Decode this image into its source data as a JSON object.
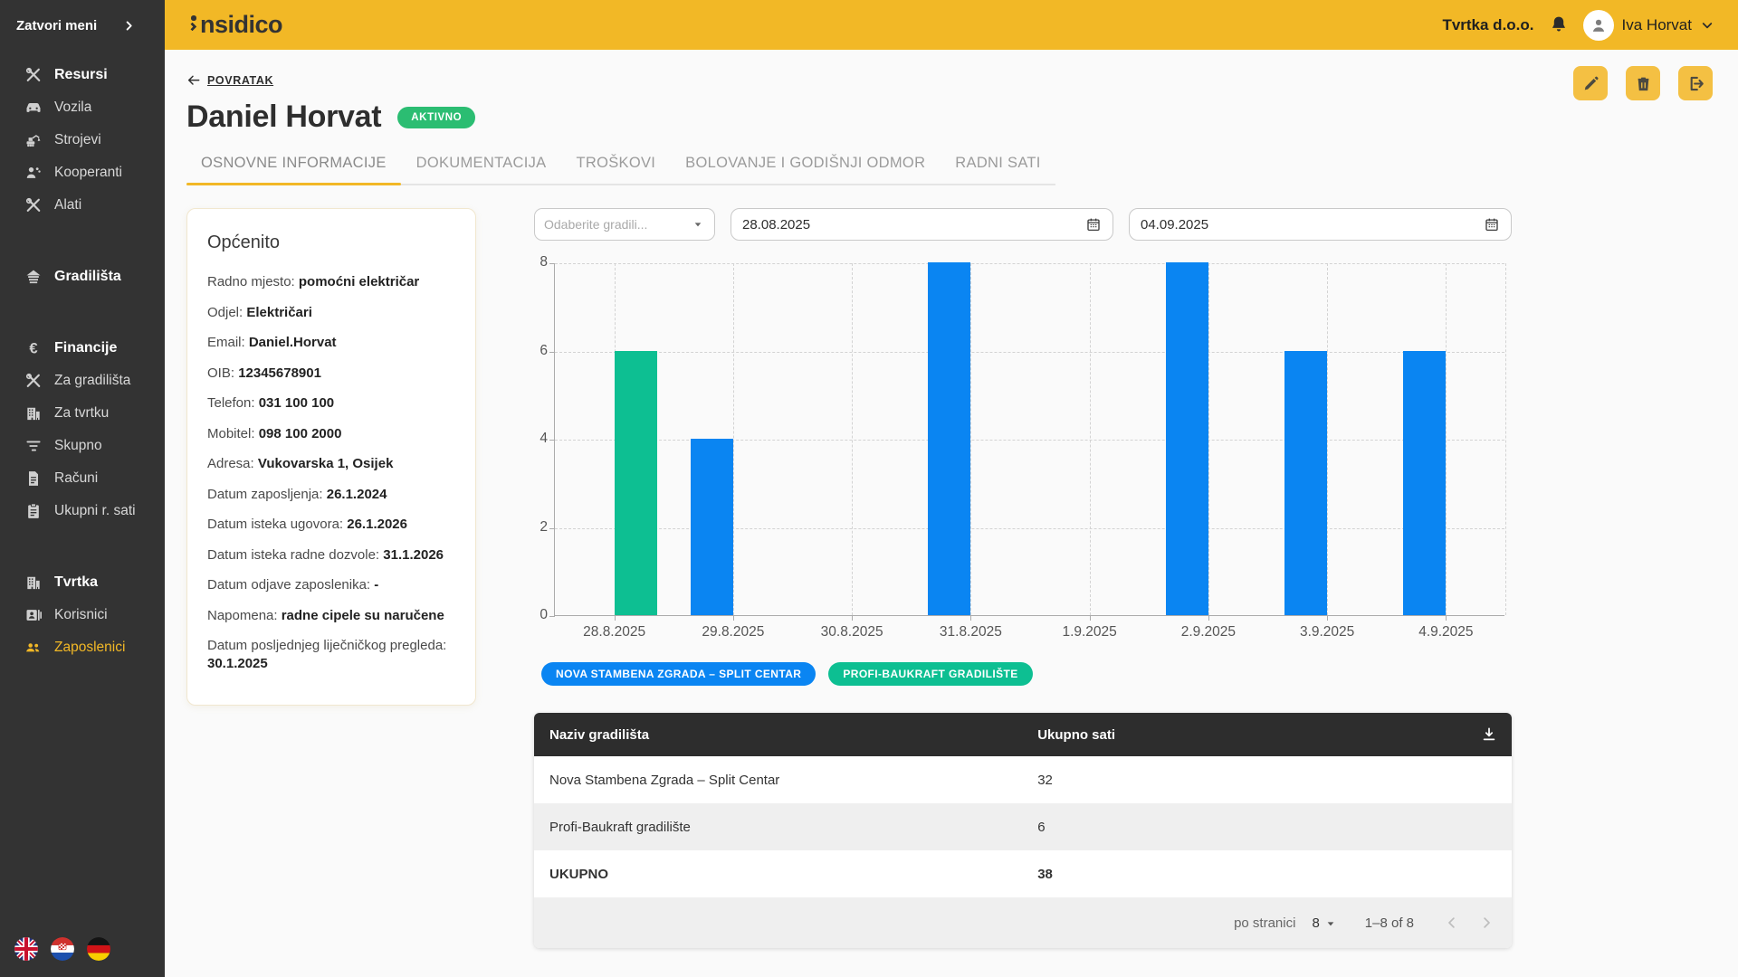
{
  "brand": {
    "name": "insidico",
    "logo_text": "nsidico"
  },
  "topbar": {
    "company": "Tvrtka d.o.o.",
    "user": "Iva Horvat"
  },
  "sidebar": {
    "close_label": "Zatvori meni",
    "items": [
      {
        "label": "Resursi",
        "icon": "tools-icon",
        "bold": true
      },
      {
        "label": "Vozila",
        "icon": "car-icon"
      },
      {
        "label": "Strojevi",
        "icon": "excavator-icon"
      },
      {
        "label": "Kooperanti",
        "icon": "workers-icon"
      },
      {
        "label": "Alati",
        "icon": "tools-icon"
      },
      {
        "label": "Gradilišta",
        "icon": "house-icon",
        "bold": true,
        "gap": true
      },
      {
        "label": "Financije",
        "icon": "euro-icon",
        "bold": true,
        "gap": true
      },
      {
        "label": "Za gradilišta",
        "icon": "tools-icon"
      },
      {
        "label": "Za tvrtku",
        "icon": "building-icon"
      },
      {
        "label": "Skupno",
        "icon": "filter-icon"
      },
      {
        "label": "Računi",
        "icon": "document-icon"
      },
      {
        "label": "Ukupni r. sati",
        "icon": "clipboard-icon"
      },
      {
        "label": "Tvrtka",
        "icon": "building-icon",
        "bold": true,
        "gap": true
      },
      {
        "label": "Korisnici",
        "icon": "id-card-icon"
      },
      {
        "label": "Zaposlenici",
        "icon": "people-icon",
        "active": true
      }
    ],
    "languages": [
      "english-flag",
      "croatian-flag",
      "german-flag"
    ]
  },
  "page": {
    "back_label": "POVRATAK",
    "title": "Daniel Horvat",
    "status_badge": "AKTIVNO",
    "tabs": [
      {
        "label": "OSNOVNE INFORMACIJE",
        "active": true
      },
      {
        "label": "DOKUMENTACIJA"
      },
      {
        "label": "TROŠKOVI"
      },
      {
        "label": "BOLOVANJE I GODIŠNJI ODMOR"
      },
      {
        "label": "RADNI SATI"
      }
    ]
  },
  "info_card": {
    "title": "Općenito",
    "fields": [
      {
        "label": "Radno mjesto",
        "value": "pomoćni električar"
      },
      {
        "label": "Odjel",
        "value": "Električari"
      },
      {
        "label": "Email",
        "value": "Daniel.Horvat"
      },
      {
        "label": "OIB",
        "value": "12345678901"
      },
      {
        "label": "Telefon",
        "value": "031 100 100"
      },
      {
        "label": "Mobitel",
        "value": "098 100 2000"
      },
      {
        "label": "Adresa",
        "value": "Vukovarska 1, Osijek"
      },
      {
        "label": "Datum zaposljenja",
        "value": "26.1.2024"
      },
      {
        "label": "Datum isteka ugovora",
        "value": "26.1.2026"
      },
      {
        "label": "Datum isteka radne dozvole",
        "value": "31.1.2026"
      },
      {
        "label": "Datum odjave zaposlenika",
        "value": "-"
      },
      {
        "label": "Napomena",
        "value": "radne cipele su naručene"
      },
      {
        "label": "Datum posljednjeg liječničkog pregleda",
        "value": "30.1.2025"
      }
    ]
  },
  "filters": {
    "site_select_placeholder": "Odaberite gradili...",
    "date_from": "28.08.2025",
    "date_to": "04.09.2025"
  },
  "chart_data": {
    "type": "bar",
    "categories": [
      "28.8.2025",
      "29.8.2025",
      "30.8.2025",
      "31.8.2025",
      "1.9.2025",
      "2.9.2025",
      "3.9.2025",
      "4.9.2025"
    ],
    "series": [
      {
        "name": "NOVA STAMBENA ZGRADA – SPLIT CENTAR",
        "color": "#0a85f2",
        "values": [
          0,
          4,
          0,
          8,
          0,
          8,
          6,
          6
        ]
      },
      {
        "name": "PROFI-BAUKRAFT GRADILIŠTE",
        "color": "#0dbf92",
        "values": [
          6,
          0,
          0,
          0,
          0,
          0,
          0,
          0
        ]
      }
    ],
    "title": "",
    "xlabel": "",
    "ylabel": "",
    "ylim": [
      0,
      8
    ],
    "yticks": [
      0,
      2,
      4,
      6,
      8
    ],
    "grid": "dashed",
    "legend_position": "bottom"
  },
  "table": {
    "columns": [
      "Naziv gradilišta",
      "Ukupno sati"
    ],
    "rows": [
      {
        "name": "Nova Stambena Zgrada – Split Centar",
        "hours": "32",
        "bold": false
      },
      {
        "name": "Profi-Baukraft gradilište",
        "hours": "6",
        "bold": false
      },
      {
        "name": "UKUPNO",
        "hours": "38",
        "bold": true
      }
    ],
    "footer": {
      "per_page_label": "po stranici",
      "per_page_value": "8",
      "range_label": "1–8 of 8"
    }
  },
  "colors": {
    "topbar": "#f2b826",
    "sidebar": "#333333",
    "accent_yellow": "#f2b826",
    "badge_green": "#2bbd72",
    "bar_blue": "#0a85f2",
    "bar_teal": "#0dbf92",
    "table_header": "#2d2d2d"
  }
}
